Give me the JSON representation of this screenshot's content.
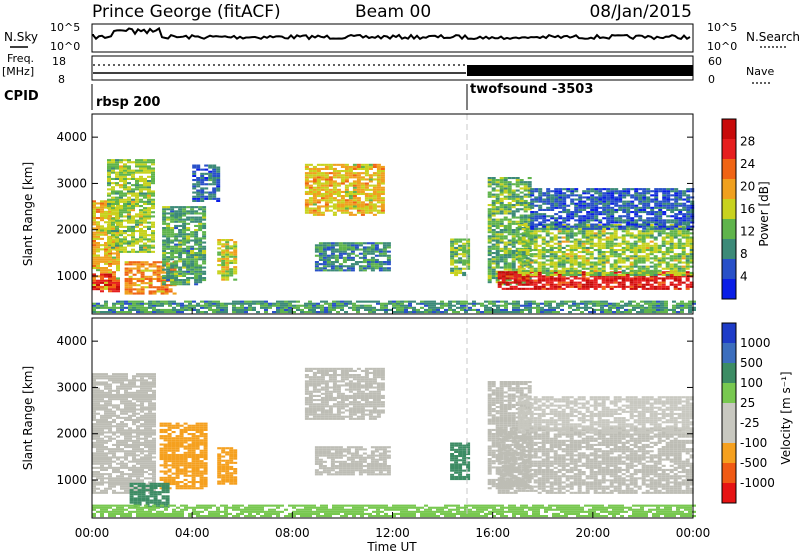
{
  "header": {
    "station": "Prince George (fitACF)",
    "beam": "Beam 00",
    "date": "08/Jan/2015"
  },
  "strip": {
    "nsky_label": "N.Sky",
    "nsearch_label": "N.Search",
    "freq_label": "Freq.",
    "freq_unit": "[MHz]",
    "nave_label": "Nave",
    "cpid_label": "CPID",
    "noise_ticks_left": [
      "10^5",
      "10^0"
    ],
    "noise_ticks_right": [
      "10^5",
      "10^0"
    ],
    "freq_ticks": [
      "18",
      "8"
    ],
    "nave_ticks": [
      "60",
      "0"
    ],
    "cpid_segments": [
      {
        "label": "rbsp 200",
        "start_hour": 0,
        "end_hour": 15.0
      },
      {
        "label": "twofsound -3503",
        "start_hour": 15.0,
        "end_hour": 24
      }
    ]
  },
  "colors": {
    "power_scale": [
      "#0a1ee6",
      "#2850c8",
      "#3c8a78",
      "#5fb44b",
      "#c8d21e",
      "#f0a01e",
      "#f06414",
      "#e61e1e",
      "#c80a0a"
    ],
    "velocity_scale": [
      "#e61414",
      "#f05a14",
      "#f5a01e",
      "#c8c8c0",
      "#c8c8c0",
      "#78c850",
      "#3c8c64",
      "#3c6ebe",
      "#1e3cc8"
    ],
    "ground_scatter": "#bdbdb5",
    "divider": "#c8c8c8"
  },
  "chart_data": [
    {
      "type": "heatmap",
      "panel": "power",
      "ylabel": "Slant Range [km]",
      "xlabel": "",
      "xlim": [
        0,
        24
      ],
      "ylim": [
        180,
        4500
      ],
      "yticks": [
        "1000",
        "2000",
        "3000",
        "4000"
      ],
      "colorbar": {
        "label": "Power [dB]",
        "min": 0,
        "max": 32,
        "ticks": [
          "4",
          "8",
          "12",
          "16",
          "20",
          "24",
          "28"
        ]
      },
      "regions": [
        {
          "t0": 0.0,
          "t1": 1.1,
          "r0": 700,
          "r1": 2600,
          "v": 18
        },
        {
          "t0": 0.0,
          "t1": 1.0,
          "r0": 650,
          "r1": 1050,
          "v": 27
        },
        {
          "t0": 0.6,
          "t1": 2.4,
          "r0": 1500,
          "r1": 3500,
          "v": 14
        },
        {
          "t0": 1.3,
          "t1": 3.3,
          "r0": 600,
          "r1": 1300,
          "v": 21
        },
        {
          "t0": 2.8,
          "t1": 4.5,
          "r0": 800,
          "r1": 2500,
          "v": 11
        },
        {
          "t0": 5.0,
          "t1": 5.7,
          "r0": 900,
          "r1": 1800,
          "v": 16
        },
        {
          "t0": 4.0,
          "t1": 5.0,
          "r0": 2600,
          "r1": 3400,
          "v": 7
        },
        {
          "t0": 8.5,
          "t1": 11.6,
          "r0": 2300,
          "r1": 3400,
          "v": 18
        },
        {
          "t0": 8.9,
          "t1": 11.8,
          "r0": 1100,
          "r1": 1700,
          "v": 9
        },
        {
          "t0": 14.3,
          "t1": 15.0,
          "r0": 1000,
          "r1": 1800,
          "v": 13
        },
        {
          "t0": 15.8,
          "t1": 17.4,
          "r0": 800,
          "r1": 3100,
          "v": 12
        },
        {
          "t0": 16.2,
          "t1": 24.0,
          "r0": 700,
          "r1": 1100,
          "v": 28
        },
        {
          "t0": 17.0,
          "t1": 24.0,
          "r0": 1000,
          "r1": 2100,
          "v": 14
        },
        {
          "t0": 17.5,
          "t1": 24.0,
          "r0": 2000,
          "r1": 2900,
          "v": 6
        },
        {
          "t0": 0.0,
          "t1": 24.0,
          "r0": 200,
          "r1": 450,
          "v": 10
        }
      ]
    },
    {
      "type": "heatmap",
      "panel": "velocity",
      "ylabel": "Slant Range [km]",
      "xlabel": "Time UT",
      "xlim": [
        0,
        24
      ],
      "ylim": [
        180,
        4500
      ],
      "yticks": [
        "1000",
        "2000",
        "3000",
        "4000"
      ],
      "xticks": [
        "00:00",
        "04:00",
        "08:00",
        "12:00",
        "16:00",
        "20:00",
        "00:00"
      ],
      "colorbar": {
        "label": "Velocity [m s⁻¹]",
        "ticks": [
          "1000",
          "500",
          "100",
          "25",
          "-25",
          "-100",
          "-500",
          "-1000"
        ]
      },
      "regions": [
        {
          "t0": 0.0,
          "t1": 2.4,
          "r0": 700,
          "r1": 3300,
          "v": 0,
          "ground": true
        },
        {
          "t0": 2.7,
          "t1": 4.6,
          "r0": 800,
          "r1": 2200,
          "v": -400
        },
        {
          "t0": 5.0,
          "t1": 5.7,
          "r0": 900,
          "r1": 1700,
          "v": -300
        },
        {
          "t0": 1.5,
          "t1": 3.0,
          "r0": 400,
          "r1": 900,
          "v": 150
        },
        {
          "t0": 8.5,
          "t1": 11.6,
          "r0": 2300,
          "r1": 3400,
          "v": 0,
          "ground": true
        },
        {
          "t0": 8.9,
          "t1": 11.8,
          "r0": 1100,
          "r1": 1700,
          "v": 0,
          "ground": true
        },
        {
          "t0": 14.3,
          "t1": 15.0,
          "r0": 1000,
          "r1": 1800,
          "v": 300
        },
        {
          "t0": 15.8,
          "t1": 17.4,
          "r0": 800,
          "r1": 3100,
          "v": 0,
          "ground": true
        },
        {
          "t0": 16.2,
          "t1": 24.0,
          "r0": 700,
          "r1": 2100,
          "v": 0,
          "ground": true
        },
        {
          "t0": 17.0,
          "t1": 24.0,
          "r0": 2000,
          "r1": 2800,
          "v": -80
        },
        {
          "t0": 0.0,
          "t1": 24.0,
          "r0": 200,
          "r1": 450,
          "v": 60
        }
      ]
    }
  ]
}
